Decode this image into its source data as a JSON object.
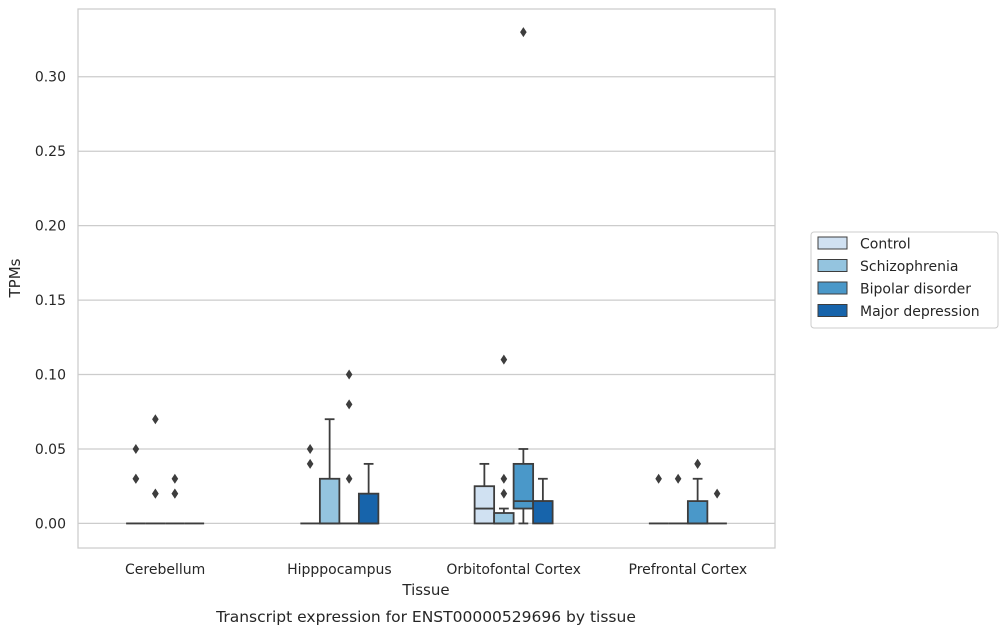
{
  "chart_data": {
    "type": "box",
    "title": "",
    "caption": "Transcript expression for ENST00000529696 by tissue",
    "xlabel": "Tissue",
    "ylabel": "TPMs",
    "ylim": [
      -0.0165,
      0.3455
    ],
    "yticks": [
      "0.00",
      "0.05",
      "0.10",
      "0.15",
      "0.20",
      "0.25",
      "0.30"
    ],
    "ytick_values": [
      0,
      0.05,
      0.1,
      0.15,
      0.2,
      0.25,
      0.3
    ],
    "grid": true,
    "legend_position": "right",
    "categories": [
      "Cerebellum",
      "Hipppocampus",
      "Orbitofontal Cortex",
      "Prefrontal Cortex"
    ],
    "hues": [
      {
        "name": "Control",
        "color": "#d0e1f2"
      },
      {
        "name": "Schizophrenia",
        "color": "#94c4df"
      },
      {
        "name": "Bipolar disorder",
        "color": "#4a98c9"
      },
      {
        "name": "Major depression",
        "color": "#1764ab"
      }
    ],
    "boxes": [
      [
        {
          "q1": 0,
          "median": 0,
          "q3": 0,
          "whislo": 0,
          "whishi": 0,
          "fliers": [
            0.03,
            0.03,
            0.05
          ]
        },
        {
          "q1": 0,
          "median": 0,
          "q3": 0,
          "whislo": 0,
          "whishi": 0,
          "fliers": [
            0.02,
            0.02,
            0.07
          ]
        },
        {
          "q1": 0,
          "median": 0,
          "q3": 0,
          "whislo": 0,
          "whishi": 0,
          "fliers": [
            0.02,
            0.02,
            0.03
          ]
        },
        {
          "q1": 0,
          "median": 0,
          "q3": 0,
          "whislo": 0,
          "whishi": 0,
          "fliers": []
        }
      ],
      [
        {
          "q1": 0,
          "median": 0,
          "q3": 0,
          "whislo": 0,
          "whishi": 0,
          "fliers": [
            0.04,
            0.05
          ]
        },
        {
          "q1": 0,
          "median": 0,
          "q3": 0.03,
          "whislo": 0,
          "whishi": 0.07,
          "fliers": []
        },
        {
          "q1": 0,
          "median": 0,
          "q3": 0,
          "whislo": 0,
          "whishi": 0,
          "fliers": [
            0.03,
            0.08,
            0.1
          ]
        },
        {
          "q1": 0,
          "median": 0,
          "q3": 0.02,
          "whislo": 0,
          "whishi": 0.04,
          "fliers": []
        }
      ],
      [
        {
          "q1": 0,
          "median": 0.01,
          "q3": 0.025,
          "whislo": 0,
          "whishi": 0.04,
          "fliers": []
        },
        {
          "q1": 0,
          "median": 0,
          "q3": 0.007,
          "whislo": 0,
          "whishi": 0.01,
          "fliers": [
            0.02,
            0.03,
            0.11
          ]
        },
        {
          "q1": 0.01,
          "median": 0.015,
          "q3": 0.04,
          "whislo": 0,
          "whishi": 0.05,
          "fliers": [
            0.33
          ]
        },
        {
          "q1": 0,
          "median": 0.015,
          "q3": 0.015,
          "whislo": 0,
          "whishi": 0.03,
          "fliers": []
        }
      ],
      [
        {
          "q1": 0,
          "median": 0,
          "q3": 0,
          "whislo": 0,
          "whishi": 0,
          "fliers": [
            0.03
          ]
        },
        {
          "q1": 0,
          "median": 0,
          "q3": 0,
          "whislo": 0,
          "whishi": 0,
          "fliers": [
            0.03
          ]
        },
        {
          "q1": 0,
          "median": 0,
          "q3": 0.015,
          "whislo": 0,
          "whishi": 0.03,
          "fliers": [
            0.04,
            0.04
          ]
        },
        {
          "q1": 0,
          "median": 0,
          "q3": 0,
          "whislo": 0,
          "whishi": 0,
          "fliers": [
            0.02
          ]
        }
      ]
    ]
  }
}
